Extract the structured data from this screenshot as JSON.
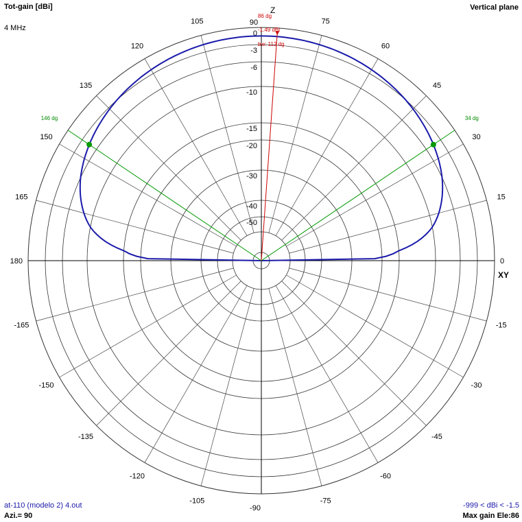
{
  "header": {
    "title": "Tot-gain [dBi]",
    "frequency": "4 MHz",
    "plane": "Vertical plane",
    "file": "at-110 (modelo 2) 4.out",
    "azimuth": "Azi.= 90",
    "range": "-999 < dBi < -1.5",
    "max_gain": "Max gain Ele:86"
  },
  "chart_data": {
    "type": "polar",
    "angle_labels": [
      {
        "deg": 0,
        "text": "0"
      },
      {
        "deg": 15,
        "text": "15"
      },
      {
        "deg": 30,
        "text": "30"
      },
      {
        "deg": 45,
        "text": "45"
      },
      {
        "deg": 60,
        "text": "60"
      },
      {
        "deg": 75,
        "text": "75"
      },
      {
        "deg": 90,
        "text": "90"
      },
      {
        "deg": 105,
        "text": "105"
      },
      {
        "deg": 120,
        "text": "120"
      },
      {
        "deg": 135,
        "text": "135"
      },
      {
        "deg": 150,
        "text": "150"
      },
      {
        "deg": 165,
        "text": "165"
      },
      {
        "deg": 180,
        "text": "180"
      },
      {
        "deg": -165,
        "text": "-165"
      },
      {
        "deg": -150,
        "text": "-150"
      },
      {
        "deg": -135,
        "text": "-135"
      },
      {
        "deg": -120,
        "text": "-120"
      },
      {
        "deg": -105,
        "text": "-105"
      },
      {
        "deg": -90,
        "text": "-90"
      },
      {
        "deg": -75,
        "text": "-75"
      },
      {
        "deg": -60,
        "text": "-60"
      },
      {
        "deg": -45,
        "text": "-45"
      },
      {
        "deg": -30,
        "text": "-30"
      },
      {
        "deg": -15,
        "text": "-15"
      }
    ],
    "rings_db": [
      0,
      -3,
      -6,
      -10,
      -15,
      -20,
      -30,
      -40,
      -50
    ],
    "ring_labels": [
      "0",
      "-3",
      "-6",
      "-10",
      "-15",
      "-20",
      "-30",
      "-40",
      "-50"
    ],
    "axis_labels": {
      "z": "Z",
      "xy": "XY"
    },
    "pattern": {
      "color": "#1a1aaa",
      "max_gain_dbi": -1.49,
      "max_elevation_deg": 86,
      "shape": "cosine-power",
      "points": [
        {
          "elev_deg": 0,
          "gain_dbi": -999
        },
        {
          "elev_deg": 34,
          "gain_dbi": -4.49
        },
        {
          "elev_deg": 86,
          "gain_dbi": -1.49
        },
        {
          "elev_deg": 146,
          "gain_dbi": -4.49
        },
        {
          "elev_deg": 180,
          "gain_dbi": -999
        }
      ]
    },
    "max_marker": {
      "color": "#cc0000",
      "angle_deg": 86,
      "label_angle": "86 dg",
      "label_gain": "-1.49 dBi",
      "label_bw": "bw: 112 dg"
    },
    "beamwidth_markers": {
      "color": "#009900",
      "angles_deg": [
        34,
        146
      ],
      "labels": [
        "34 dg",
        "146 dg"
      ]
    }
  }
}
